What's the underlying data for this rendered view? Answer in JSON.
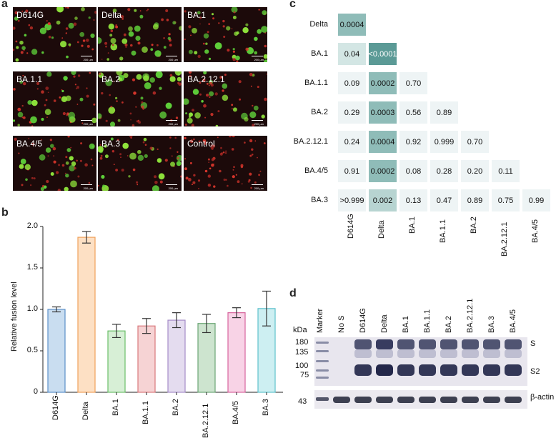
{
  "panels": {
    "a": "a",
    "b": "b",
    "c": "c",
    "d": "d"
  },
  "panel_a": {
    "scale_label": "200 µm",
    "images": [
      "D614G",
      "Delta",
      "BA.1",
      "BA.1.1",
      "BA.2",
      "BA.2.12.1",
      "BA.4/5",
      "BA.3",
      "Control"
    ]
  },
  "chart_data": {
    "type": "bar",
    "title": "",
    "xlabel": "",
    "ylabel": "Relative fusion level",
    "ylim": [
      0,
      2.0
    ],
    "yticks": [
      "0",
      "0.5",
      "1.0",
      "1.5",
      "2.0"
    ],
    "categories": [
      "D614G",
      "Delta",
      "BA.1",
      "BA.1.1",
      "BA.2",
      "BA.2.12.1",
      "BA.4/5",
      "BA.3"
    ],
    "values": [
      1.0,
      1.87,
      0.74,
      0.8,
      0.87,
      0.83,
      0.96,
      1.01
    ],
    "errors": [
      0.03,
      0.07,
      0.08,
      0.09,
      0.09,
      0.11,
      0.06,
      0.21
    ],
    "colors": [
      "#c9ddf0",
      "#fde0c4",
      "#d7efd6",
      "#f6d3d4",
      "#e4dcef",
      "#cde4cf",
      "#f8d3e6",
      "#cdeff2"
    ],
    "edge_colors": [
      "#5b8fc7",
      "#f0a15a",
      "#6abf69",
      "#d9787c",
      "#a58cc8",
      "#6aa574",
      "#d7649c",
      "#5ec1cc"
    ]
  },
  "panel_c": {
    "row_labels": [
      "Delta",
      "BA.1",
      "BA.1.1",
      "BA.2",
      "BA.2.12.1",
      "BA.4/5",
      "BA.3"
    ],
    "col_labels": [
      "D614G",
      "Delta",
      "BA.1",
      "BA.1.1",
      "BA.2",
      "BA.2.12.1",
      "BA.4/5"
    ],
    "rows": [
      [
        "0.0004"
      ],
      [
        "0.04",
        "<0.0001"
      ],
      [
        "0.09",
        "0.0002",
        "0.70"
      ],
      [
        "0.29",
        "0.0003",
        "0.56",
        "0.89"
      ],
      [
        "0.24",
        "0.0004",
        "0.92",
        "0.999",
        "0.70"
      ],
      [
        "0.91",
        "0.0002",
        "0.08",
        "0.28",
        "0.20",
        "0.11"
      ],
      [
        ">0.999",
        "0.002",
        "0.13",
        "0.47",
        "0.89",
        "0.75",
        "0.99"
      ]
    ]
  },
  "panel_d": {
    "kda_label": "kDa",
    "lane_labels": [
      "Marker",
      "No S",
      "D614G",
      "Delta",
      "BA.1",
      "BA.1.1",
      "BA.2",
      "BA.2.12.1",
      "BA.3",
      "BA.4/5"
    ],
    "markers_top": [
      "180",
      "135",
      "100",
      "75"
    ],
    "marker_bottom": "43",
    "band_labels": {
      "s": "S",
      "s2": "S2",
      "actin": "β-actin"
    }
  }
}
